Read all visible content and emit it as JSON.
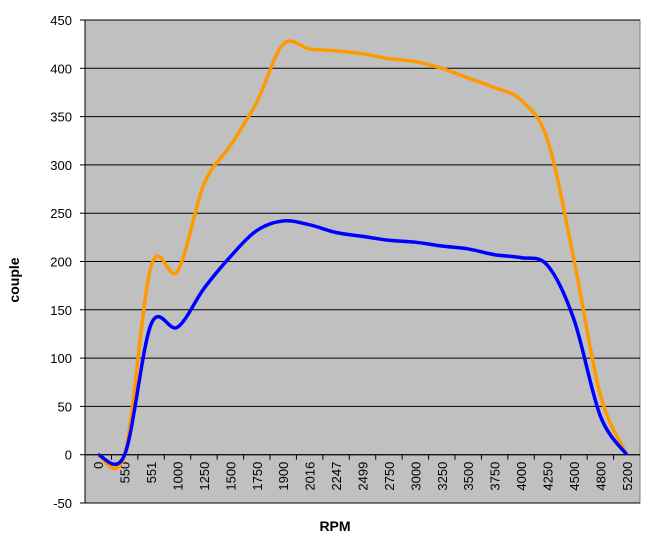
{
  "chart_data": {
    "type": "line",
    "x_label": "RPM",
    "y_label": "couple",
    "categories": [
      "0",
      "550",
      "551",
      "1000",
      "1250",
      "1500",
      "1750",
      "1900",
      "2016",
      "2247",
      "2499",
      "2750",
      "3000",
      "3250",
      "3500",
      "3750",
      "4000",
      "4250",
      "4500",
      "4800",
      "5200"
    ],
    "series": [
      {
        "color": "#ff9900",
        "values": [
          0,
          0,
          195,
          190,
          280,
          320,
          365,
          425,
          420,
          418,
          415,
          410,
          407,
          400,
          390,
          380,
          367,
          326,
          202,
          62,
          0
        ]
      },
      {
        "color": "#0000ff",
        "values": [
          0,
          0,
          135,
          132,
          172,
          205,
          232,
          242,
          238,
          230,
          226,
          222,
          220,
          216,
          213,
          207,
          204,
          196,
          140,
          40,
          0
        ]
      }
    ],
    "ylim": [
      -50,
      450
    ],
    "yticks": [
      -50,
      0,
      50,
      100,
      150,
      200,
      250,
      300,
      350,
      400,
      450
    ],
    "grid": true,
    "background": "#c0c0c0",
    "smooth": true
  }
}
